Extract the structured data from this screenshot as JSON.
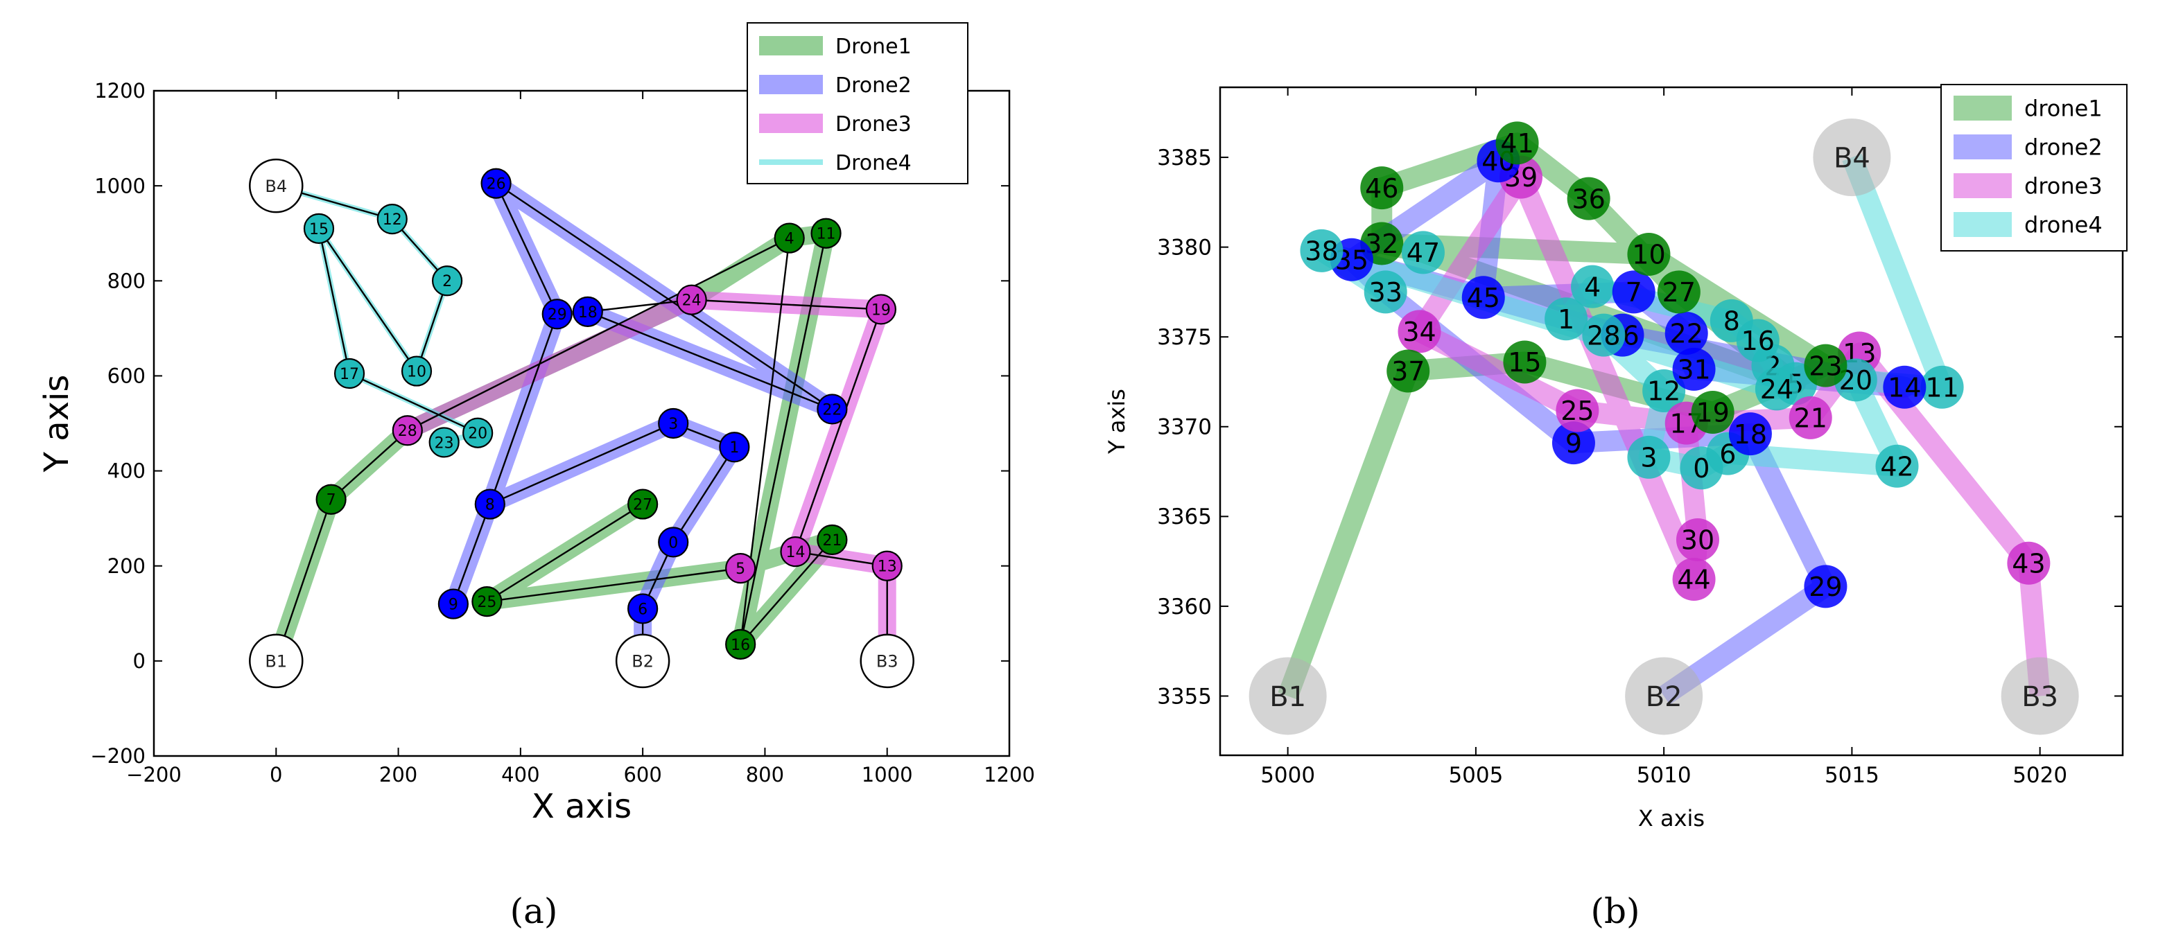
{
  "figure": {
    "caption_a": "(a)",
    "caption_b": "(b)"
  },
  "chart_data": [
    {
      "type": "scatter",
      "subtype": "route-map",
      "panel": "a",
      "title": "",
      "xlabel": "X axis",
      "ylabel": "Y axis",
      "xlim": [
        -200,
        1200
      ],
      "ylim": [
        -200,
        1200
      ],
      "xticks": [
        "−200",
        "0",
        "200",
        "400",
        "600",
        "800",
        "1000",
        "1200"
      ],
      "xtick_values": [
        -200,
        0,
        200,
        400,
        600,
        800,
        1000,
        1200
      ],
      "yticks": [
        "−200",
        "0",
        "200",
        "400",
        "600",
        "800",
        "1000",
        "1200"
      ],
      "ytick_values": [
        -200,
        0,
        200,
        400,
        600,
        800,
        1000,
        1200
      ],
      "grid": false,
      "legend_position": "top-right",
      "bases": [
        {
          "label": "B1",
          "x": 0,
          "y": 0
        },
        {
          "label": "B2",
          "x": 600,
          "y": 0
        },
        {
          "label": "B3",
          "x": 1000,
          "y": 0
        },
        {
          "label": "B4",
          "x": 0,
          "y": 1000
        }
      ],
      "series": [
        {
          "name": "Drone1",
          "color": "#008000",
          "route_color": "#4caf50",
          "style": "thick",
          "route": [
            "B1",
            "7",
            "28",
            "24",
            "4",
            "11",
            "16",
            "21",
            "5",
            "25",
            "27"
          ]
        },
        {
          "name": "Drone2",
          "color": "#0000ff",
          "route_color": "#6666ff",
          "style": "thick",
          "route": [
            "B2",
            "6",
            "0",
            "1",
            "3",
            "8",
            "9",
            "8",
            "29",
            "26",
            "22",
            "18"
          ]
        },
        {
          "name": "Drone3",
          "color": "#cc33cc",
          "route_color": "#dd55dd",
          "style": "thick",
          "route": [
            "B3",
            "13",
            "14",
            "19",
            "24",
            "28"
          ]
        },
        {
          "name": "Drone4",
          "color": "#22bbbb",
          "route_color": "#55dddd",
          "style": "thin",
          "route": [
            "B4",
            "12",
            "2",
            "10",
            "15",
            "17",
            "20",
            "23"
          ]
        }
      ],
      "black_paths": [
        [
          "B1",
          "7",
          "28",
          "4",
          "16",
          "11"
        ],
        [
          "B2",
          "6",
          "0",
          "1",
          "3",
          "8",
          "9",
          "8",
          "29",
          "26",
          "22",
          "18",
          "24",
          "19",
          "14",
          "13",
          "B3"
        ],
        [
          "21",
          "16"
        ],
        [
          "25",
          "27"
        ],
        [
          "25",
          "5"
        ],
        [
          "B4",
          "12",
          "2",
          "10",
          "15",
          "17",
          "20"
        ]
      ],
      "points": [
        {
          "id": "0",
          "x": 650,
          "y": 250,
          "color": "#0000ff"
        },
        {
          "id": "1",
          "x": 750,
          "y": 450,
          "color": "#0000ff"
        },
        {
          "id": "2",
          "x": 280,
          "y": 800,
          "color": "#22bbbb"
        },
        {
          "id": "3",
          "x": 650,
          "y": 500,
          "color": "#0000ff"
        },
        {
          "id": "4",
          "x": 840,
          "y": 890,
          "color": "#008000"
        },
        {
          "id": "5",
          "x": 760,
          "y": 195,
          "color": "#cc33cc"
        },
        {
          "id": "6",
          "x": 600,
          "y": 110,
          "color": "#0000ff"
        },
        {
          "id": "7",
          "x": 90,
          "y": 340,
          "color": "#008000"
        },
        {
          "id": "8",
          "x": 350,
          "y": 330,
          "color": "#0000ff"
        },
        {
          "id": "9",
          "x": 290,
          "y": 120,
          "color": "#0000ff"
        },
        {
          "id": "10",
          "x": 230,
          "y": 610,
          "color": "#22bbbb"
        },
        {
          "id": "11",
          "x": 900,
          "y": 900,
          "color": "#008000"
        },
        {
          "id": "12",
          "x": 190,
          "y": 930,
          "color": "#22bbbb"
        },
        {
          "id": "13",
          "x": 1000,
          "y": 200,
          "color": "#cc33cc"
        },
        {
          "id": "14",
          "x": 850,
          "y": 230,
          "color": "#cc33cc"
        },
        {
          "id": "15",
          "x": 70,
          "y": 910,
          "color": "#22bbbb"
        },
        {
          "id": "16",
          "x": 760,
          "y": 35,
          "color": "#008000"
        },
        {
          "id": "17",
          "x": 120,
          "y": 605,
          "color": "#22bbbb"
        },
        {
          "id": "18",
          "x": 510,
          "y": 735,
          "color": "#0000ff"
        },
        {
          "id": "19",
          "x": 990,
          "y": 740,
          "color": "#cc33cc"
        },
        {
          "id": "20",
          "x": 330,
          "y": 480,
          "color": "#22bbbb"
        },
        {
          "id": "21",
          "x": 910,
          "y": 255,
          "color": "#008000"
        },
        {
          "id": "22",
          "x": 910,
          "y": 530,
          "color": "#0000ff"
        },
        {
          "id": "23",
          "x": 275,
          "y": 460,
          "color": "#22bbbb"
        },
        {
          "id": "24",
          "x": 680,
          "y": 760,
          "color": "#cc33cc"
        },
        {
          "id": "25",
          "x": 345,
          "y": 125,
          "color": "#008000"
        },
        {
          "id": "26",
          "x": 360,
          "y": 1005,
          "color": "#0000ff"
        },
        {
          "id": "27",
          "x": 600,
          "y": 330,
          "color": "#008000"
        },
        {
          "id": "28",
          "x": 215,
          "y": 485,
          "color": "#cc33cc"
        },
        {
          "id": "29",
          "x": 460,
          "y": 730,
          "color": "#0000ff"
        }
      ]
    },
    {
      "type": "scatter",
      "subtype": "route-map",
      "panel": "b",
      "title": "",
      "xlabel": "X axis",
      "ylabel": "Y axis",
      "xlim": [
        4998.2,
        5022.2
      ],
      "ylim": [
        3351.7,
        3388.9
      ],
      "xticks": [
        "5000",
        "5005",
        "5010",
        "5015",
        "5020"
      ],
      "xtick_values": [
        5000,
        5005,
        5010,
        5015,
        5020
      ],
      "yticks": [
        "3355",
        "3360",
        "3365",
        "3370",
        "3375",
        "3380",
        "3385"
      ],
      "ytick_values": [
        3355,
        3360,
        3365,
        3370,
        3375,
        3380,
        3385
      ],
      "grid": false,
      "legend_position": "top-right",
      "bases": [
        {
          "label": "B1",
          "x": 5000,
          "y": 3355
        },
        {
          "label": "B2",
          "x": 5010,
          "y": 3355
        },
        {
          "label": "B3",
          "x": 5020,
          "y": 3355
        },
        {
          "label": "B4",
          "x": 5015,
          "y": 3385
        }
      ],
      "series": [
        {
          "name": "drone1",
          "color": "#008000",
          "route_color": "#4caf50",
          "route": [
            "B1",
            "37",
            "15",
            "19",
            "23",
            "10",
            "32",
            "46",
            "41",
            "36",
            "27",
            "5",
            "47",
            "32"
          ]
        },
        {
          "name": "drone2",
          "color": "#0000ff",
          "route_color": "#6666ff",
          "route": [
            "B2",
            "29",
            "18",
            "9",
            "33",
            "35",
            "40",
            "45",
            "7",
            "22",
            "31",
            "14",
            "26",
            "35"
          ]
        },
        {
          "name": "drone3",
          "color": "#cc33cc",
          "route_color": "#dd55dd",
          "route": [
            "B3",
            "43",
            "13",
            "21",
            "17",
            "25",
            "34",
            "39",
            "44",
            "30",
            "17"
          ]
        },
        {
          "name": "drone4",
          "color": "#22bbbb",
          "route_color": "#55dddd",
          "route": [
            "B4",
            "11",
            "20",
            "42",
            "6",
            "0",
            "3",
            "12",
            "28",
            "1",
            "4",
            "8",
            "16",
            "2",
            "24",
            "38",
            "33"
          ]
        }
      ],
      "points": [
        {
          "id": "0",
          "x": 5011,
          "y": 3367.7,
          "color": "#22bbbb"
        },
        {
          "id": "1",
          "x": 5007.4,
          "y": 3376,
          "color": "#22bbbb"
        },
        {
          "id": "2",
          "x": 5012.9,
          "y": 3373.4,
          "color": "#22bbbb"
        },
        {
          "id": "3",
          "x": 5009.6,
          "y": 3368.3,
          "color": "#22bbbb"
        },
        {
          "id": "4",
          "x": 5008.1,
          "y": 3377.8,
          "color": "#22bbbb"
        },
        {
          "id": "5",
          "x": 5013.5,
          "y": 3372.4,
          "color": "#22bbbb"
        },
        {
          "id": "6",
          "x": 5011.7,
          "y": 3368.5,
          "color": "#22bbbb"
        },
        {
          "id": "7",
          "x": 5009.2,
          "y": 3377.5,
          "color": "#0000ff"
        },
        {
          "id": "8",
          "x": 5011.8,
          "y": 3375.9,
          "color": "#22bbbb"
        },
        {
          "id": "9",
          "x": 5007.6,
          "y": 3369.1,
          "color": "#0000ff"
        },
        {
          "id": "10",
          "x": 5009.6,
          "y": 3379.6,
          "color": "#008000"
        },
        {
          "id": "11",
          "x": 5017.4,
          "y": 3372.2,
          "color": "#22bbbb"
        },
        {
          "id": "12",
          "x": 5010,
          "y": 3372,
          "color": "#22bbbb"
        },
        {
          "id": "13",
          "x": 5015.2,
          "y": 3374.1,
          "color": "#cc33cc"
        },
        {
          "id": "14",
          "x": 5016.4,
          "y": 3372.2,
          "color": "#0000ff"
        },
        {
          "id": "15",
          "x": 5006.3,
          "y": 3373.6,
          "color": "#008000"
        },
        {
          "id": "16",
          "x": 5012.5,
          "y": 3374.8,
          "color": "#22bbbb"
        },
        {
          "id": "17",
          "x": 5010.6,
          "y": 3370.2,
          "color": "#cc33cc"
        },
        {
          "id": "18",
          "x": 5012.3,
          "y": 3369.6,
          "color": "#0000ff"
        },
        {
          "id": "19",
          "x": 5011.3,
          "y": 3370.8,
          "color": "#008000"
        },
        {
          "id": "20",
          "x": 5015.1,
          "y": 3372.6,
          "color": "#22bbbb"
        },
        {
          "id": "21",
          "x": 5013.9,
          "y": 3370.5,
          "color": "#cc33cc"
        },
        {
          "id": "22",
          "x": 5010.6,
          "y": 3375.2,
          "color": "#0000ff"
        },
        {
          "id": "23",
          "x": 5014.3,
          "y": 3373.4,
          "color": "#008000"
        },
        {
          "id": "24",
          "x": 5013,
          "y": 3372.1,
          "color": "#22bbbb"
        },
        {
          "id": "25",
          "x": 5007.7,
          "y": 3370.9,
          "color": "#cc33cc"
        },
        {
          "id": "26",
          "x": 5008.9,
          "y": 3375.1,
          "color": "#0000ff"
        },
        {
          "id": "27",
          "x": 5010.4,
          "y": 3377.5,
          "color": "#008000"
        },
        {
          "id": "28",
          "x": 5008.4,
          "y": 3375.1,
          "color": "#22bbbb"
        },
        {
          "id": "29",
          "x": 5014.3,
          "y": 3361.1,
          "color": "#0000ff"
        },
        {
          "id": "30",
          "x": 5010.9,
          "y": 3363.7,
          "color": "#cc33cc"
        },
        {
          "id": "31",
          "x": 5010.8,
          "y": 3373.2,
          "color": "#0000ff"
        },
        {
          "id": "32",
          "x": 5002.5,
          "y": 3380.2,
          "color": "#008000"
        },
        {
          "id": "33",
          "x": 5002.6,
          "y": 3377.5,
          "color": "#22bbbb"
        },
        {
          "id": "34",
          "x": 5003.5,
          "y": 3375.3,
          "color": "#cc33cc"
        },
        {
          "id": "35",
          "x": 5001.7,
          "y": 3379.3,
          "color": "#0000ff"
        },
        {
          "id": "36",
          "x": 5008,
          "y": 3382.7,
          "color": "#008000"
        },
        {
          "id": "37",
          "x": 5003.2,
          "y": 3373.1,
          "color": "#008000"
        },
        {
          "id": "38",
          "x": 5000.9,
          "y": 3379.8,
          "color": "#22bbbb"
        },
        {
          "id": "39",
          "x": 5006.2,
          "y": 3383.9,
          "color": "#cc33cc"
        },
        {
          "id": "40",
          "x": 5005.6,
          "y": 3384.8,
          "color": "#0000ff"
        },
        {
          "id": "41",
          "x": 5006.1,
          "y": 3385.8,
          "color": "#008000"
        },
        {
          "id": "42",
          "x": 5016.2,
          "y": 3367.8,
          "color": "#22bbbb"
        },
        {
          "id": "43",
          "x": 5019.7,
          "y": 3362.4,
          "color": "#cc33cc"
        },
        {
          "id": "44",
          "x": 5010.8,
          "y": 3361.5,
          "color": "#cc33cc"
        },
        {
          "id": "45",
          "x": 5005.2,
          "y": 3377.2,
          "color": "#0000ff"
        },
        {
          "id": "46",
          "x": 5002.5,
          "y": 3383.3,
          "color": "#008000"
        },
        {
          "id": "47",
          "x": 5003.6,
          "y": 3379.7,
          "color": "#22bbbb"
        }
      ]
    }
  ]
}
